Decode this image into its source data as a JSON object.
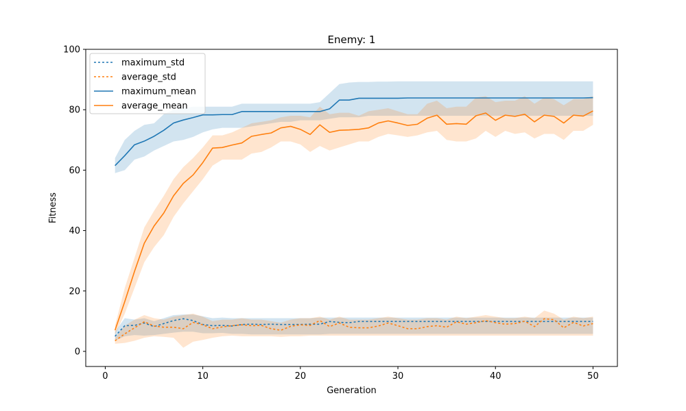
{
  "chart_data": {
    "type": "line",
    "title": "Enemy: 1",
    "xlabel": "Generation",
    "ylabel": "Fitness",
    "xlim": [
      -2,
      52.5
    ],
    "ylim": [
      -5,
      100
    ],
    "xticks": [
      0,
      10,
      20,
      30,
      40,
      50
    ],
    "yticks": [
      0,
      20,
      40,
      60,
      80,
      100
    ],
    "grid": false,
    "legend_position": "top-left",
    "x": [
      1,
      2,
      3,
      4,
      5,
      6,
      7,
      8,
      9,
      10,
      11,
      12,
      13,
      14,
      15,
      16,
      17,
      18,
      19,
      20,
      21,
      22,
      23,
      24,
      25,
      26,
      27,
      28,
      29,
      30,
      31,
      32,
      33,
      34,
      35,
      36,
      37,
      38,
      39,
      40,
      41,
      42,
      43,
      44,
      45,
      46,
      47,
      48,
      49,
      50
    ],
    "series": [
      {
        "name": "maximum_std",
        "style": "dotted",
        "color": "#1f77b4",
        "values": [
          5,
          8.5,
          8.6,
          9.4,
          8.2,
          9.2,
          10.2,
          10.8,
          10.2,
          8.9,
          8.5,
          8.6,
          8.4,
          8.9,
          9.0,
          8.9,
          9.0,
          8.9,
          8.9,
          8.9,
          9.0,
          9.0,
          9.9,
          9.6,
          9.5,
          9.9,
          9.9,
          9.9,
          9.9,
          9.9,
          9.9,
          9.9,
          9.9,
          9.9,
          9.9,
          9.9,
          9.9,
          9.9,
          9.9,
          9.9,
          9.9,
          9.9,
          9.9,
          9.9,
          9.9,
          9.9,
          9.9,
          9.9,
          9.9,
          9.9
        ],
        "lower": [
          3.5,
          5.0,
          5.4,
          5.2,
          5.4,
          5.8,
          6.2,
          6.5,
          6.5,
          6.0,
          6.0,
          6.1,
          5.8,
          5.8,
          5.6,
          5.6,
          5.6,
          5.6,
          5.6,
          5.6,
          5.6,
          5.6,
          5.8,
          5.8,
          5.8,
          5.8,
          5.8,
          5.8,
          5.8,
          5.8,
          5.8,
          5.8,
          5.8,
          5.8,
          5.8,
          5.8,
          5.8,
          5.8,
          5.8,
          5.8,
          5.8,
          5.8,
          5.8,
          5.8,
          5.8,
          5.8,
          5.8,
          5.8,
          5.8,
          5.8
        ],
        "upper": [
          6.5,
          11.0,
          10.5,
          11.0,
          10.0,
          11.0,
          12.0,
          12.2,
          12.2,
          11.6,
          11.0,
          11.2,
          11.0,
          11.0,
          11.0,
          11.0,
          11.0,
          11.0,
          11.0,
          11.0,
          11.0,
          11.2,
          11.2,
          11.2,
          11.2,
          11.2,
          11.2,
          11.2,
          11.2,
          11.2,
          11.2,
          11.2,
          11.2,
          11.2,
          11.2,
          11.2,
          11.2,
          11.2,
          11.2,
          11.2,
          11.2,
          11.2,
          11.2,
          11.2,
          11.2,
          11.2,
          11.2,
          11.2,
          11.2,
          11.2
        ]
      },
      {
        "name": "average_std",
        "style": "dotted",
        "color": "#ff7f0e",
        "values": [
          3.5,
          5.8,
          7.8,
          9.8,
          8.4,
          8.0,
          8.0,
          7.5,
          9.6,
          8.8,
          7.5,
          8.1,
          8.5,
          8.8,
          8.5,
          8.6,
          7.5,
          7.0,
          8.3,
          8.8,
          8.6,
          10.2,
          8.2,
          9.4,
          8.0,
          7.8,
          7.8,
          8.4,
          9.4,
          8.5,
          7.5,
          7.5,
          8.2,
          8.5,
          8.0,
          9.8,
          9.0,
          9.5,
          10.2,
          9.5,
          9.0,
          9.2,
          10.0,
          8.2,
          10.8,
          10.5,
          7.8,
          9.6,
          8.4,
          9.2
        ],
        "lower": [
          2.5,
          2.8,
          3.5,
          4.5,
          5.0,
          4.8,
          4.5,
          1.2,
          3.2,
          3.8,
          4.5,
          5.0,
          5.2,
          5.0,
          5.0,
          5.0,
          5.0,
          4.8,
          5.0,
          5.0,
          5.2,
          5.2,
          5.2,
          5.2,
          5.2,
          5.2,
          5.2,
          5.2,
          5.2,
          5.2,
          5.2,
          5.2,
          5.2,
          5.2,
          5.2,
          5.2,
          5.2,
          5.2,
          5.2,
          5.2,
          5.2,
          5.2,
          5.2,
          5.2,
          5.2,
          5.2,
          5.2,
          5.2,
          5.2,
          5.2
        ],
        "upper": [
          4.5,
          8.5,
          10.5,
          12.0,
          11.0,
          10.5,
          11.5,
          12.0,
          12.5,
          11.5,
          10.0,
          10.5,
          10.5,
          11.0,
          10.5,
          10.5,
          10.0,
          9.5,
          10.5,
          11.0,
          11.0,
          11.5,
          10.5,
          11.5,
          10.5,
          10.5,
          10.5,
          11.0,
          11.5,
          11.0,
          10.5,
          10.5,
          11.0,
          11.0,
          10.5,
          11.5,
          11.0,
          11.5,
          12.0,
          11.5,
          11.0,
          11.0,
          11.5,
          11.0,
          13.5,
          12.5,
          10.5,
          11.5,
          11.0,
          11.5
        ]
      },
      {
        "name": "maximum_mean",
        "style": "solid",
        "color": "#1f77b4",
        "values": [
          61.5,
          64.8,
          68.4,
          69.6,
          71.2,
          73.2,
          75.6,
          76.6,
          77.4,
          78.3,
          78.3,
          78.4,
          78.4,
          79.4,
          79.4,
          79.4,
          79.4,
          79.4,
          79.4,
          79.4,
          79.4,
          79.4,
          80.3,
          83.2,
          83.2,
          83.8,
          83.8,
          83.8,
          83.8,
          83.8,
          83.9,
          83.9,
          83.9,
          83.9,
          83.9,
          83.9,
          83.9,
          83.9,
          83.9,
          83.9,
          83.9,
          83.9,
          83.9,
          83.9,
          83.9,
          83.9,
          83.9,
          83.9,
          83.9,
          84.0
        ],
        "lower": [
          59.0,
          60.0,
          63.5,
          64.5,
          66.5,
          68.0,
          69.5,
          70.0,
          71.0,
          72.5,
          73.5,
          74.0,
          74.0,
          74.0,
          74.5,
          75.0,
          75.5,
          76.0,
          76.0,
          76.5,
          76.5,
          76.5,
          77.0,
          77.5,
          77.5,
          77.5,
          78.0,
          78.0,
          78.0,
          78.0,
          78.0,
          78.0,
          78.0,
          78.0,
          78.0,
          78.0,
          78.0,
          78.0,
          78.0,
          78.0,
          78.0,
          78.0,
          78.0,
          78.0,
          78.0,
          78.0,
          78.0,
          78.0,
          78.0,
          78.0
        ],
        "upper": [
          64.0,
          70.0,
          73.0,
          75.0,
          75.5,
          78.5,
          80.0,
          80.5,
          81.0,
          81.0,
          81.0,
          81.0,
          81.0,
          82.0,
          82.0,
          82.0,
          82.0,
          82.0,
          82.0,
          82.0,
          82.0,
          82.5,
          85.5,
          88.5,
          89.0,
          89.2,
          89.2,
          89.3,
          89.3,
          89.4,
          89.4,
          89.4,
          89.4,
          89.4,
          89.4,
          89.4,
          89.4,
          89.4,
          89.4,
          89.4,
          89.4,
          89.4,
          89.4,
          89.4,
          89.4,
          89.4,
          89.4,
          89.4,
          89.4,
          89.4
        ]
      },
      {
        "name": "average_mean",
        "style": "solid",
        "color": "#ff7f0e",
        "values": [
          7.0,
          16.5,
          26.5,
          35.8,
          41.5,
          45.8,
          51.5,
          55.6,
          58.4,
          62.5,
          67.3,
          67.5,
          68.3,
          69.0,
          71.2,
          71.8,
          72.3,
          74.0,
          74.5,
          73.5,
          71.8,
          75.0,
          72.5,
          73.2,
          73.3,
          73.5,
          74.0,
          75.6,
          76.3,
          75.6,
          74.8,
          75.2,
          77.2,
          78.2,
          75.2,
          75.4,
          75.2,
          78.0,
          78.9,
          76.5,
          78.2,
          77.8,
          78.5,
          76.0,
          78.2,
          77.8,
          75.6,
          78.2,
          77.9,
          79.6
        ],
        "lower": [
          5.5,
          12.5,
          21.0,
          29.5,
          34.5,
          38.5,
          44.5,
          49.0,
          53.0,
          57.0,
          61.5,
          63.5,
          63.5,
          63.5,
          65.5,
          66.0,
          67.5,
          69.5,
          69.5,
          68.5,
          66.0,
          68.0,
          66.5,
          67.5,
          68.5,
          69.5,
          69.5,
          71.0,
          72.0,
          71.5,
          71.0,
          71.5,
          72.5,
          73.0,
          70.0,
          69.5,
          69.5,
          70.5,
          73.0,
          71.0,
          73.0,
          72.0,
          72.5,
          70.5,
          72.0,
          72.0,
          70.0,
          73.0,
          73.0,
          75.0
        ],
        "upper": [
          8.5,
          21.0,
          31.0,
          41.0,
          46.5,
          51.5,
          57.0,
          61.0,
          64.0,
          67.5,
          71.5,
          71.5,
          72.5,
          74.0,
          75.5,
          76.0,
          76.5,
          77.5,
          78.0,
          78.0,
          77.5,
          81.0,
          78.5,
          79.0,
          79.0,
          78.0,
          79.5,
          80.0,
          80.5,
          79.5,
          78.5,
          78.5,
          82.0,
          83.0,
          80.5,
          81.0,
          81.0,
          84.0,
          84.5,
          82.5,
          83.0,
          83.0,
          84.5,
          82.0,
          84.0,
          83.5,
          81.5,
          83.5,
          83.5,
          84.5
        ]
      }
    ]
  }
}
